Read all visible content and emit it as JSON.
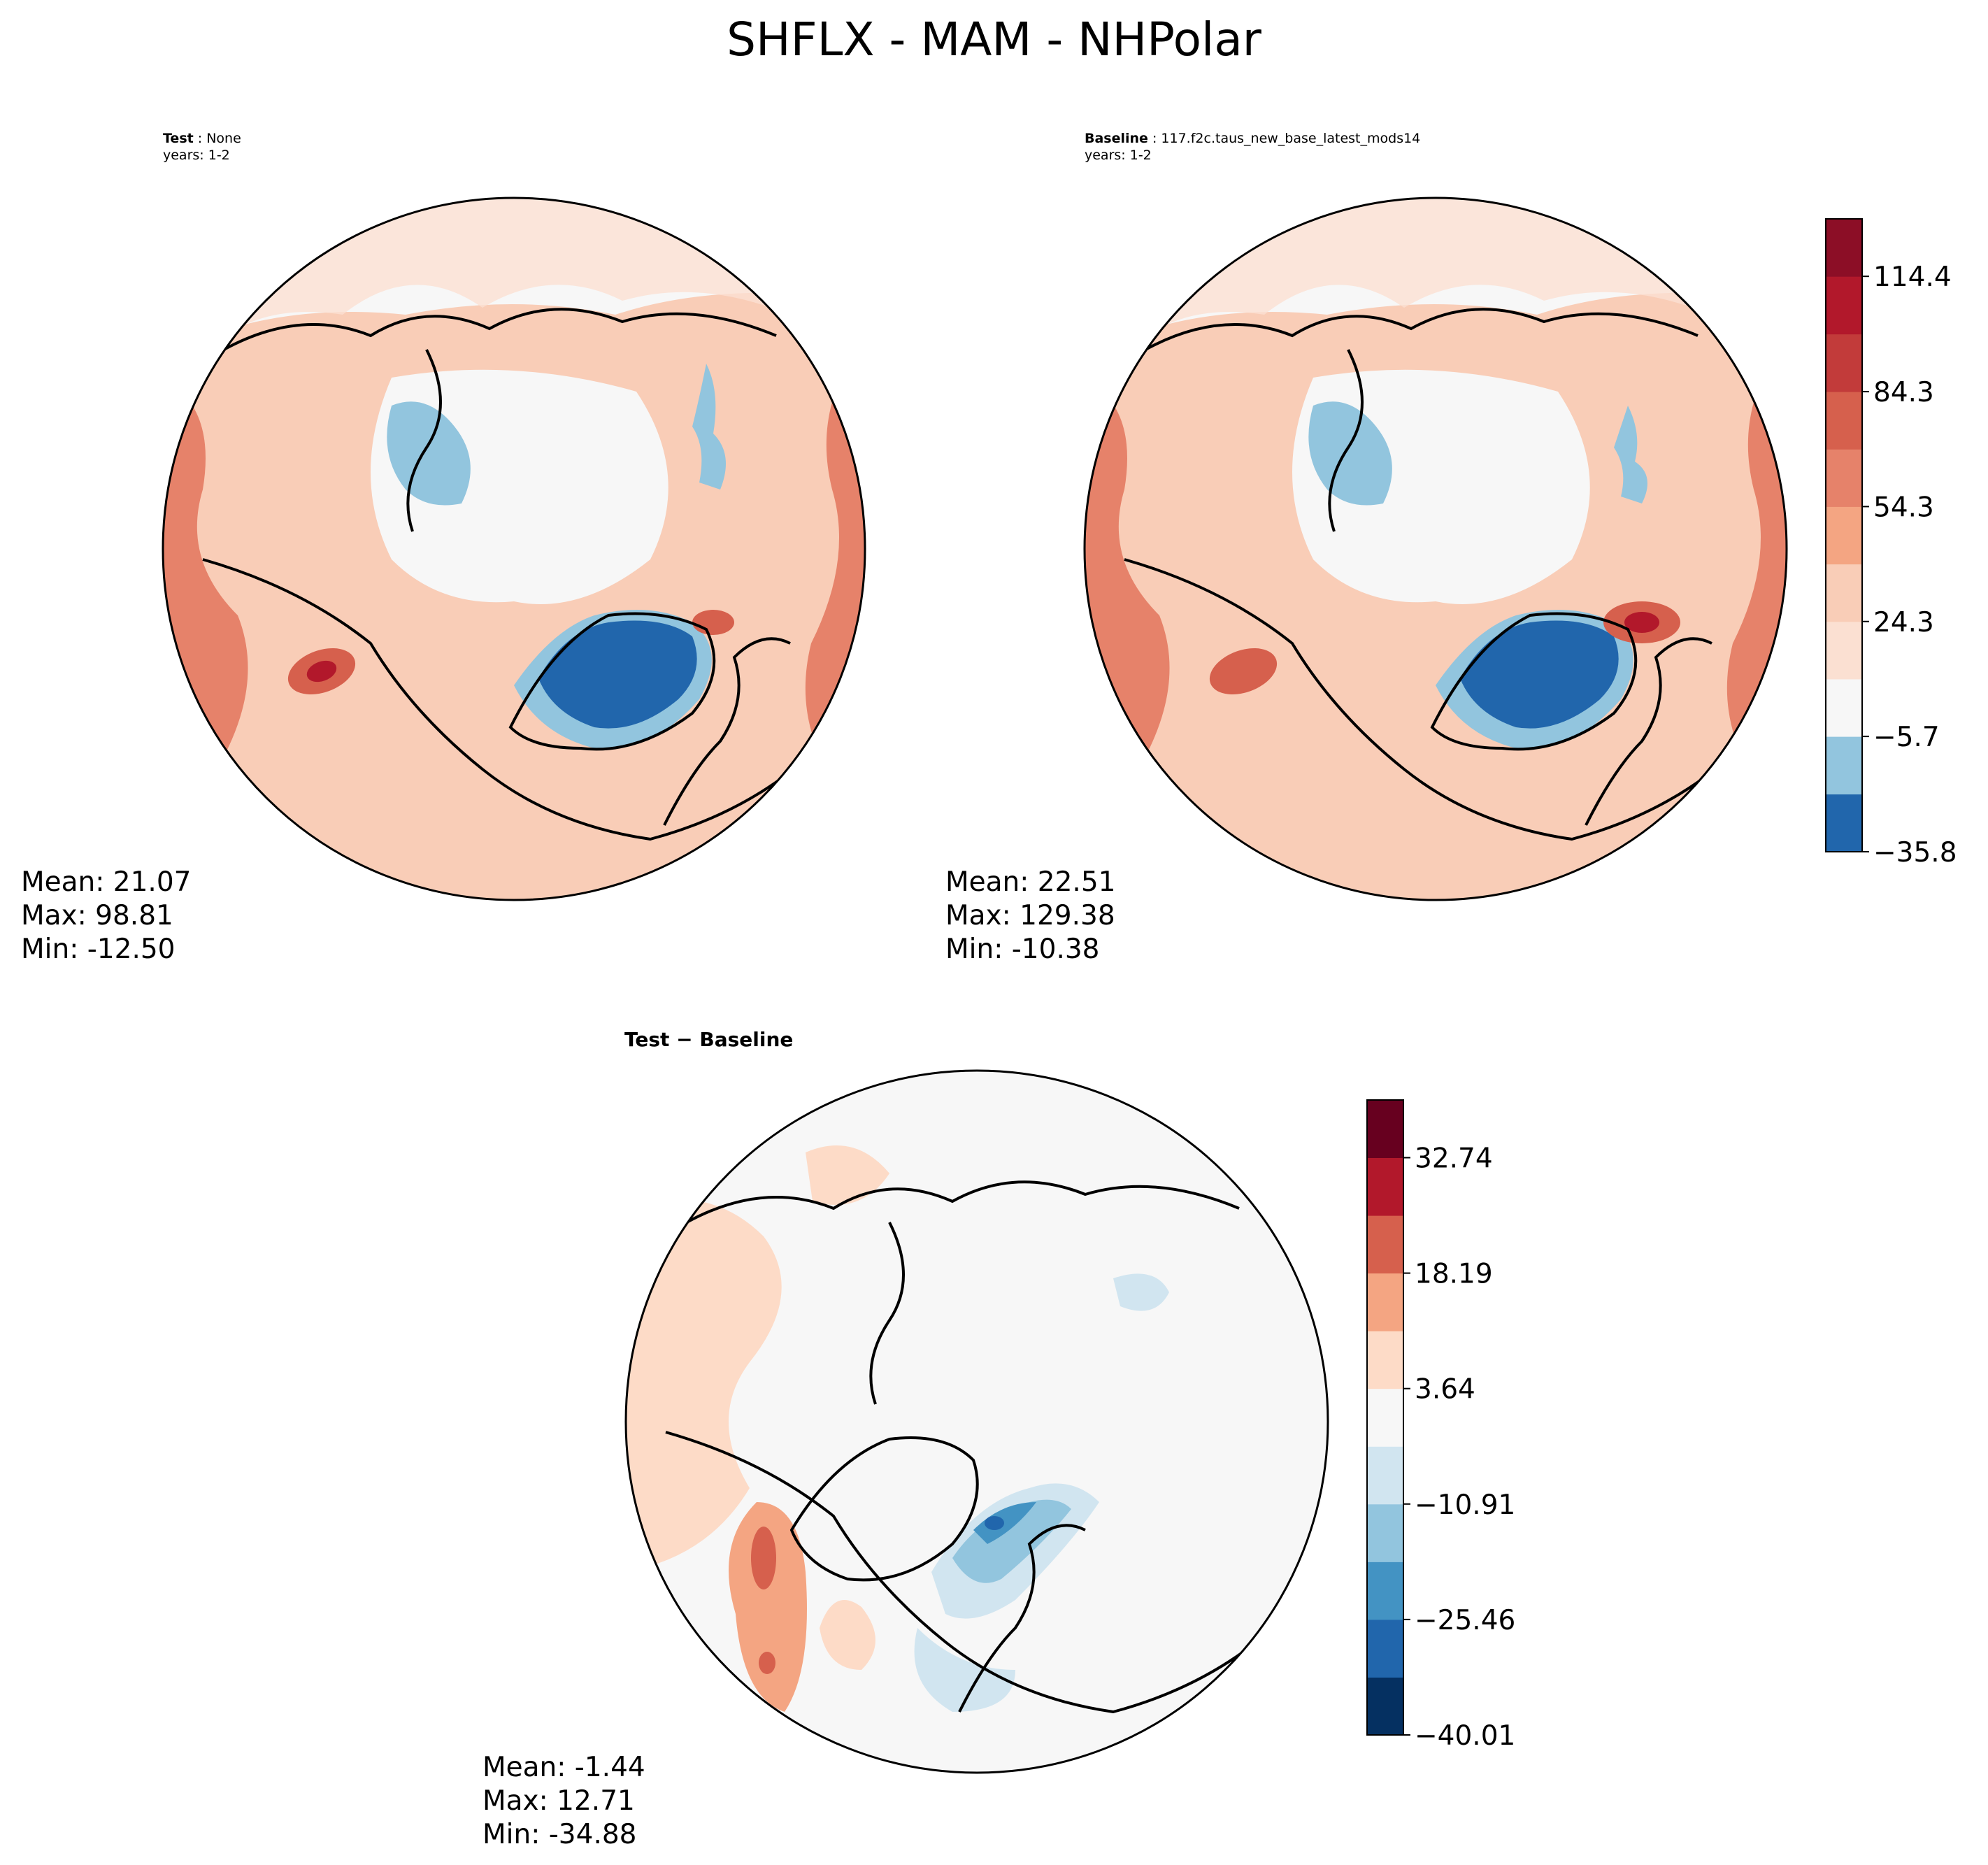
{
  "title": "SHFLX - MAM - NHPolar",
  "panels": [
    {
      "id": "test",
      "label": "Test",
      "name": "None",
      "years": "years: 1-2",
      "stats": {
        "mean": "Mean: 21.07",
        "max": "Max: 98.81",
        "min": "Min: -12.50"
      }
    },
    {
      "id": "baseline",
      "label": "Baseline",
      "name": "117.f2c.taus_new_base_latest_mods14",
      "years": "years: 1-2",
      "stats": {
        "mean": "Mean: 22.51",
        "max": "Max: 129.38",
        "min": "Min: -10.38"
      }
    },
    {
      "id": "diff",
      "label": "Test − Baseline",
      "stats": {
        "mean": "Mean: -1.44",
        "max": "Max: 12.71",
        "min": "Min: -34.88"
      }
    }
  ],
  "chart_data": [
    {
      "type": "heatmap",
      "projection": "north-polar-stereographic",
      "title": "Test : None",
      "subtitle": "years: 1-2",
      "summary": {
        "mean": 21.07,
        "max": 98.81,
        "min": -12.5
      }
    },
    {
      "type": "heatmap",
      "projection": "north-polar-stereographic",
      "title": "Baseline : 117.f2c.taus_new_base_latest_mods14",
      "subtitle": "years: 1-2",
      "summary": {
        "mean": 22.51,
        "max": 129.38,
        "min": -10.38
      },
      "colorbar": {
        "levels": [
          -35.8,
          -20.75,
          -5.7,
          9.3,
          24.3,
          39.3,
          54.3,
          69.3,
          84.3,
          99.35,
          114.4,
          129.4
        ],
        "ticks": [
          "114.4",
          "84.3",
          "54.3",
          "24.3",
          "−5.7",
          "−35.8"
        ],
        "tick_values": [
          114.4,
          84.3,
          54.3,
          24.3,
          -5.7,
          -35.8
        ],
        "colors": [
          "#2166ac",
          "#92c5de",
          "#f7f7f7",
          "#fbe0d2",
          "#f9cdb7",
          "#f4a582",
          "#e6826a",
          "#d6604d",
          "#c23b3a",
          "#b2182b",
          "#8c0e26"
        ]
      }
    },
    {
      "type": "heatmap",
      "projection": "north-polar-stereographic",
      "title": "Test − Baseline",
      "summary": {
        "mean": -1.44,
        "max": 12.71,
        "min": -34.88
      },
      "colorbar": {
        "levels": [
          -40.01,
          -32.74,
          -25.46,
          -18.19,
          -10.91,
          -3.64,
          3.64,
          10.91,
          18.19,
          25.46,
          32.74,
          40.01
        ],
        "ticks": [
          "32.74",
          "18.19",
          "3.64",
          "−10.91",
          "−25.46",
          "−40.01"
        ],
        "tick_values": [
          32.74,
          18.19,
          3.64,
          -10.91,
          -25.46,
          -40.01
        ],
        "colors": [
          "#053061",
          "#2166ac",
          "#4393c3",
          "#92c5de",
          "#d1e5f0",
          "#f7f7f7",
          "#fddbc7",
          "#f4a582",
          "#d6604d",
          "#b2182b",
          "#67001f"
        ]
      }
    }
  ]
}
